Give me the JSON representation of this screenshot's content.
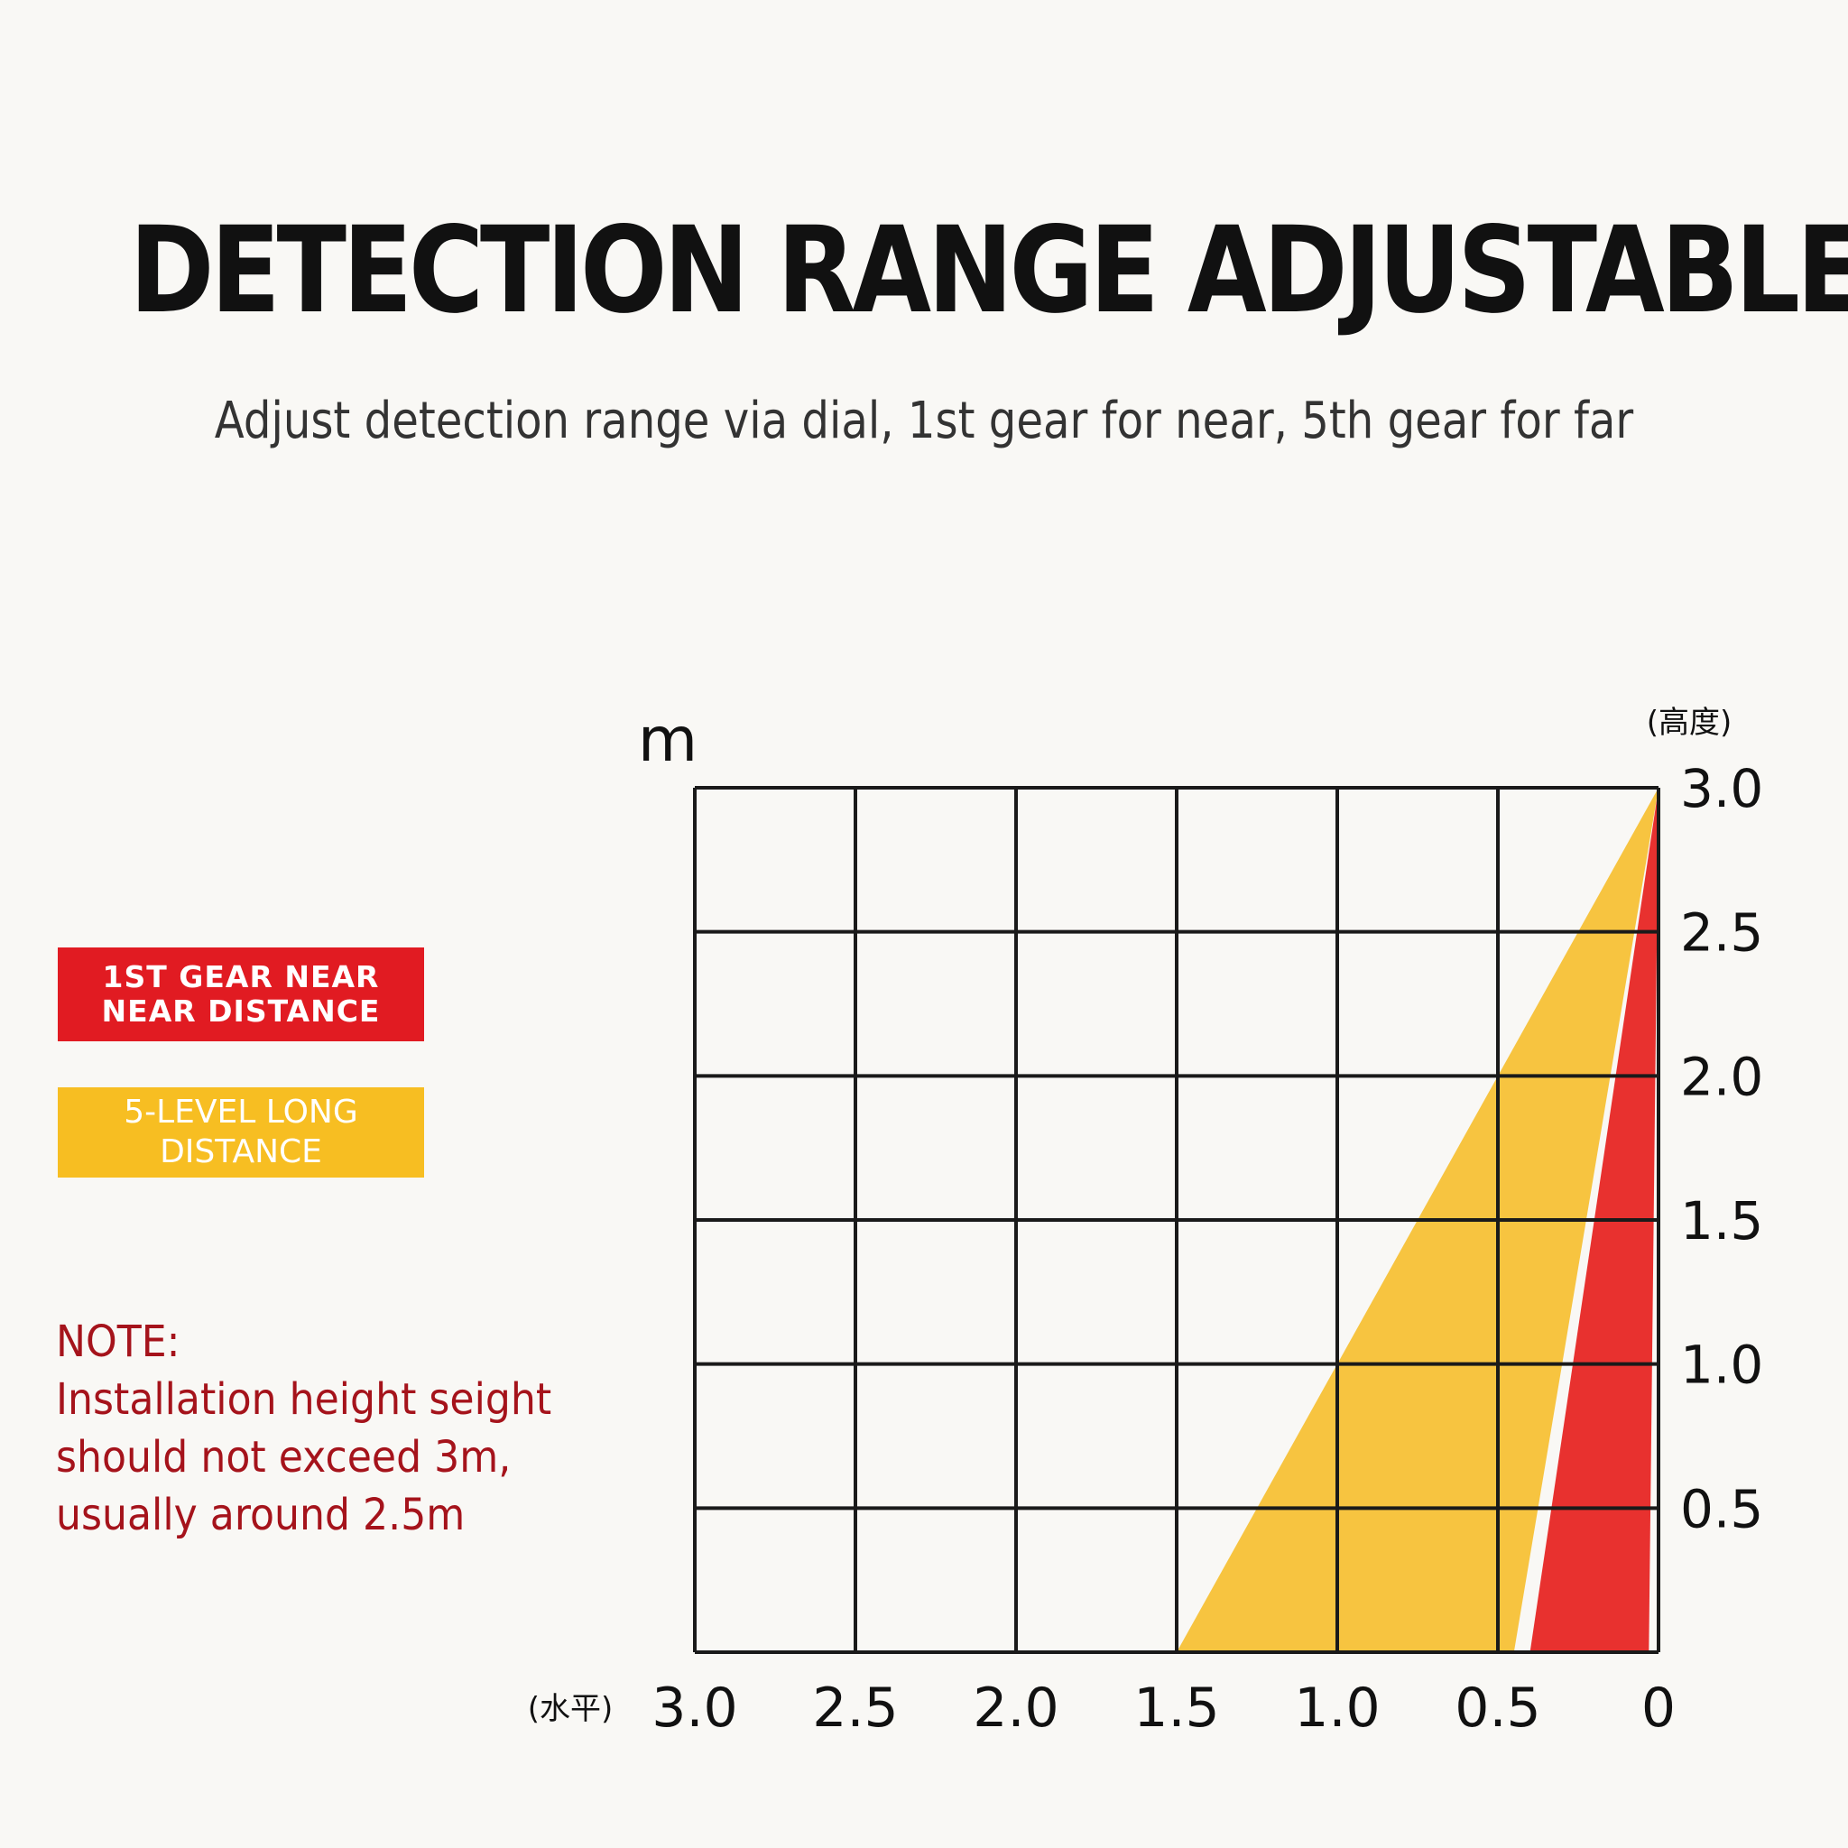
{
  "header": {
    "title": "DETECTION RANGE ADJUSTABLE",
    "subtitle": "Adjust detection range via dial, 1st gear for near, 5th gear for far"
  },
  "legend": {
    "near": {
      "line1": "1ST GEAR NEAR",
      "line2": "NEAR DISTANCE",
      "color": "#e11b22"
    },
    "far": {
      "line1": "5-LEVEL LONG",
      "line2": "DISTANCE",
      "color": "#f7be22"
    }
  },
  "note": {
    "title": "NOTE:",
    "text": "Installation height seight\nshould not exceed 3m,\nusually around 2.5m",
    "color": "#a5131b"
  },
  "chart_data": {
    "type": "area",
    "unit_label": "m",
    "x_label": "(水平)",
    "y_label": "(高度)",
    "x_ticks": [
      "3.0",
      "2.5",
      "2.0",
      "1.5",
      "1.0",
      "0.5",
      "0"
    ],
    "y_ticks": [
      "3.0",
      "2.5",
      "2.0",
      "1.5",
      "1.0",
      "0.5"
    ],
    "xlim": [
      3.0,
      0
    ],
    "ylim": [
      0,
      3.0
    ],
    "grid": true,
    "series": [
      {
        "name": "5-LEVEL LONG DISTANCE",
        "color": "#f7c440",
        "points": [
          [
            0,
            3.0
          ],
          [
            1.5,
            0
          ],
          [
            0.45,
            0
          ]
        ]
      },
      {
        "name": "1ST GEAR NEAR NEAR DISTANCE",
        "color": "#e8312f",
        "points": [
          [
            0,
            3.0
          ],
          [
            0.4,
            0
          ],
          [
            0.03,
            0
          ]
        ]
      }
    ]
  }
}
